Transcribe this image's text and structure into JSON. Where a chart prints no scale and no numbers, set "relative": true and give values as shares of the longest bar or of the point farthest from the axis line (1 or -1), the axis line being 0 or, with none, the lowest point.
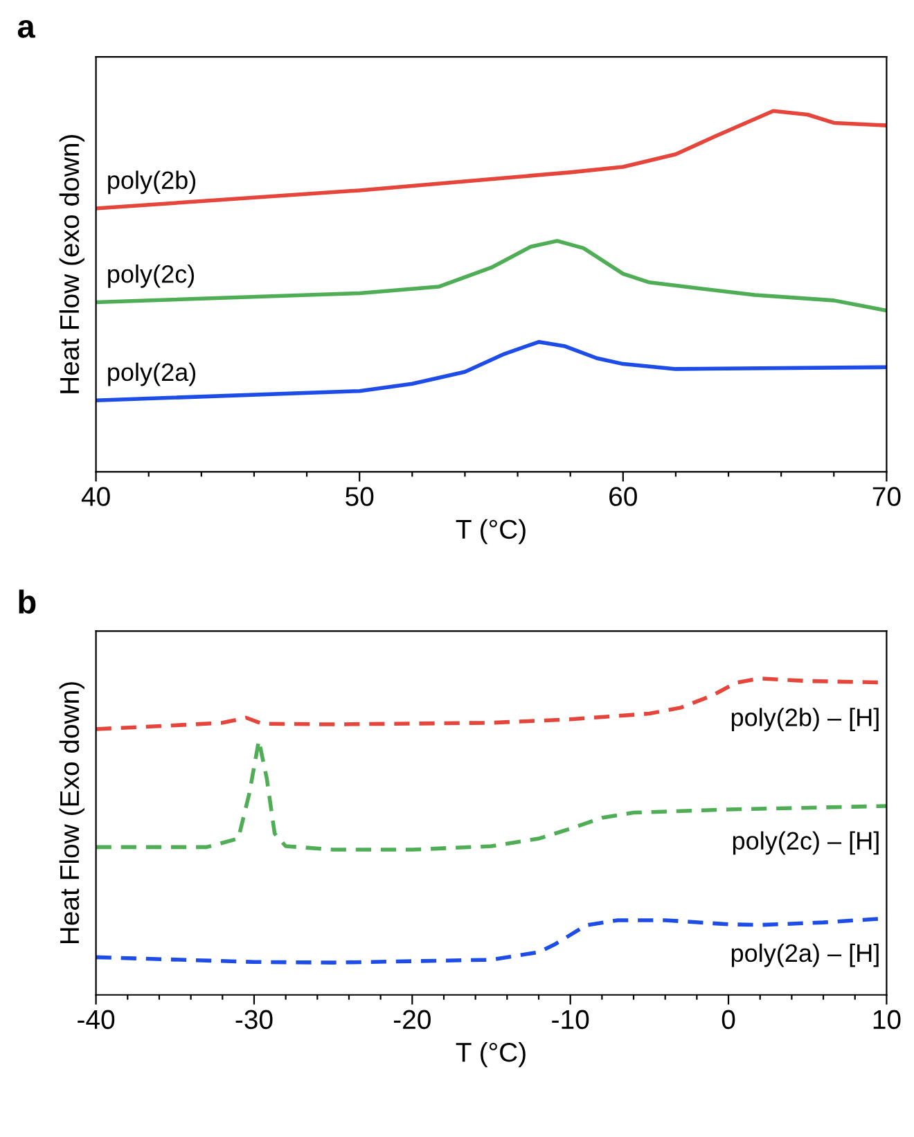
{
  "chart_data": [
    {
      "type": "line",
      "relative": true,
      "xlabel": "T (°C)",
      "ylabel": "Heat Flow (exo down)",
      "annotations": [
        "a"
      ],
      "xlim": [
        40,
        70
      ],
      "xticks": [
        40,
        {
          "value": 42,
          "label": null
        },
        {
          "value": 44,
          "label": null
        },
        {
          "value": 46,
          "label": null
        },
        {
          "value": 48,
          "label": null
        },
        50,
        {
          "value": 52,
          "label": null
        },
        {
          "value": 54,
          "label": null
        },
        {
          "value": 56,
          "label": null
        },
        {
          "value": 58,
          "label": null
        },
        60,
        {
          "value": 62,
          "label": null
        },
        {
          "value": 64,
          "label": null
        },
        {
          "value": 66,
          "label": null
        },
        {
          "value": 68,
          "label": null
        },
        70
      ],
      "tick_labels": "x",
      "line_style": "solid",
      "grid": false,
      "series": [
        {
          "name": "poly(2b)",
          "color": "#e5453b",
          "x": [
            40,
            50,
            58,
            60,
            62,
            63.5,
            65.7,
            67,
            68,
            70
          ],
          "values": [
            0.73,
            0.78,
            0.83,
            0.845,
            0.88,
            0.93,
            1.0,
            0.99,
            0.967,
            0.96
          ]
        },
        {
          "name": "poly(2c)",
          "color": "#4fae55",
          "x": [
            40,
            50,
            53,
            55,
            56.5,
            57.5,
            58.5,
            60,
            61,
            65,
            68,
            70
          ],
          "values": [
            0.47,
            0.495,
            0.513,
            0.566,
            0.624,
            0.64,
            0.62,
            0.549,
            0.525,
            0.49,
            0.475,
            0.447
          ]
        },
        {
          "name": "poly(2a)",
          "color": "#1d4ce6",
          "x": [
            40,
            50,
            52,
            54,
            55.5,
            56.8,
            57.8,
            59,
            60,
            62,
            70
          ],
          "values": [
            0.198,
            0.224,
            0.244,
            0.277,
            0.327,
            0.36,
            0.348,
            0.315,
            0.299,
            0.285,
            0.29
          ]
        }
      ]
    },
    {
      "type": "line",
      "relative": true,
      "xlabel": "T (°C)",
      "ylabel": "Heat Flow (Exo down)",
      "annotations": [
        "b"
      ],
      "xlim": [
        -40,
        10
      ],
      "xticks": [
        -40,
        {
          "value": -38,
          "label": null
        },
        {
          "value": -36,
          "label": null
        },
        {
          "value": -34,
          "label": null
        },
        {
          "value": -32,
          "label": null
        },
        -30,
        {
          "value": -28,
          "label": null
        },
        {
          "value": -26,
          "label": null
        },
        {
          "value": -24,
          "label": null
        },
        {
          "value": -22,
          "label": null
        },
        -20,
        {
          "value": -18,
          "label": null
        },
        {
          "value": -16,
          "label": null
        },
        {
          "value": -14,
          "label": null
        },
        {
          "value": -12,
          "label": null
        },
        -10,
        {
          "value": -8,
          "label": null
        },
        {
          "value": -6,
          "label": null
        },
        {
          "value": -4,
          "label": null
        },
        {
          "value": -2,
          "label": null
        },
        0,
        {
          "value": 2,
          "label": null
        },
        {
          "value": 4,
          "label": null
        },
        {
          "value": 6,
          "label": null
        },
        {
          "value": 8,
          "label": null
        },
        10
      ],
      "tick_labels": "x",
      "line_style": "dashed",
      "grid": false,
      "series": [
        {
          "name": "poly(2b) – [H]",
          "color": "#e5453b",
          "x": [
            -40,
            -35,
            -32,
            -30.5,
            -29.5,
            -25,
            -15,
            -10,
            -5,
            -3,
            -1,
            0.5,
            2,
            5,
            10
          ],
          "values": [
            0.84,
            0.852,
            0.86,
            0.876,
            0.857,
            0.855,
            0.86,
            0.871,
            0.889,
            0.908,
            0.947,
            0.987,
            1.0,
            0.992,
            0.987
          ]
        },
        {
          "name": "poly(2c) – [H]",
          "color": "#4fae55",
          "x": [
            -40,
            -33,
            -31,
            -30.3,
            -29.7,
            -29.2,
            -28.7,
            -28,
            -25,
            -20,
            -15,
            -12,
            -10,
            -8,
            -6,
            0,
            10
          ],
          "values": [
            0.467,
            0.467,
            0.494,
            0.637,
            0.804,
            0.685,
            0.51,
            0.47,
            0.459,
            0.459,
            0.47,
            0.494,
            0.525,
            0.56,
            0.576,
            0.586,
            0.597
          ]
        },
        {
          "name": "poly(2a) – [H]",
          "color": "#1d4ce6",
          "x": [
            -40,
            -30,
            -25,
            -15,
            -12,
            -11,
            -9,
            -7,
            -4,
            0,
            2,
            6,
            10
          ],
          "values": [
            0.119,
            0.104,
            0.102,
            0.111,
            0.135,
            0.159,
            0.22,
            0.236,
            0.236,
            0.223,
            0.221,
            0.229,
            0.242
          ]
        }
      ]
    }
  ]
}
